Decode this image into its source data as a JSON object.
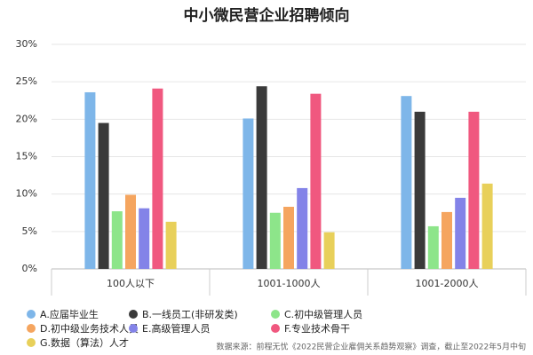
{
  "chart_data": {
    "type": "bar",
    "title": "中小微民营企业招聘倾向",
    "categories": [
      "100人以下",
      "1001-1000人",
      "1001-2000人"
    ],
    "series": [
      {
        "name": "A.应届毕业生",
        "color": "#7eb6e9",
        "values": [
          23.6,
          20.1,
          23.1
        ]
      },
      {
        "name": "B.一线员工(非研发类)",
        "color": "#3a3a3a",
        "values": [
          19.5,
          24.4,
          21.0
        ]
      },
      {
        "name": "C.初中级管理人员",
        "color": "#8de58a",
        "values": [
          7.7,
          7.5,
          5.7
        ]
      },
      {
        "name": "D.初中级业务技术人员",
        "color": "#f5a55f",
        "values": [
          9.9,
          8.3,
          7.6
        ]
      },
      {
        "name": "E.高级管理人员",
        "color": "#8383e8",
        "values": [
          8.1,
          10.8,
          9.5
        ]
      },
      {
        "name": "F.专业技术骨干",
        "color": "#f0587f",
        "values": [
          24.1,
          23.4,
          21.0
        ]
      },
      {
        "name": "G.数据（算法）人才",
        "color": "#e8d05a",
        "values": [
          6.3,
          4.9,
          11.4
        ]
      }
    ],
    "ylim": [
      0,
      30
    ],
    "yticks": [
      {
        "value": 0,
        "label": "0%"
      },
      {
        "value": 5,
        "label": "5%"
      },
      {
        "value": 10,
        "label": "10%"
      },
      {
        "value": 15,
        "label": "15%"
      },
      {
        "value": 20,
        "label": "20%"
      },
      {
        "value": 25,
        "label": "25%"
      },
      {
        "value": 30,
        "label": "30%"
      }
    ],
    "grid": true,
    "note": "数据来源：前程无忧《2022民营企业雇佣关系趋势观察》调查，截止至2022年5月中旬"
  }
}
